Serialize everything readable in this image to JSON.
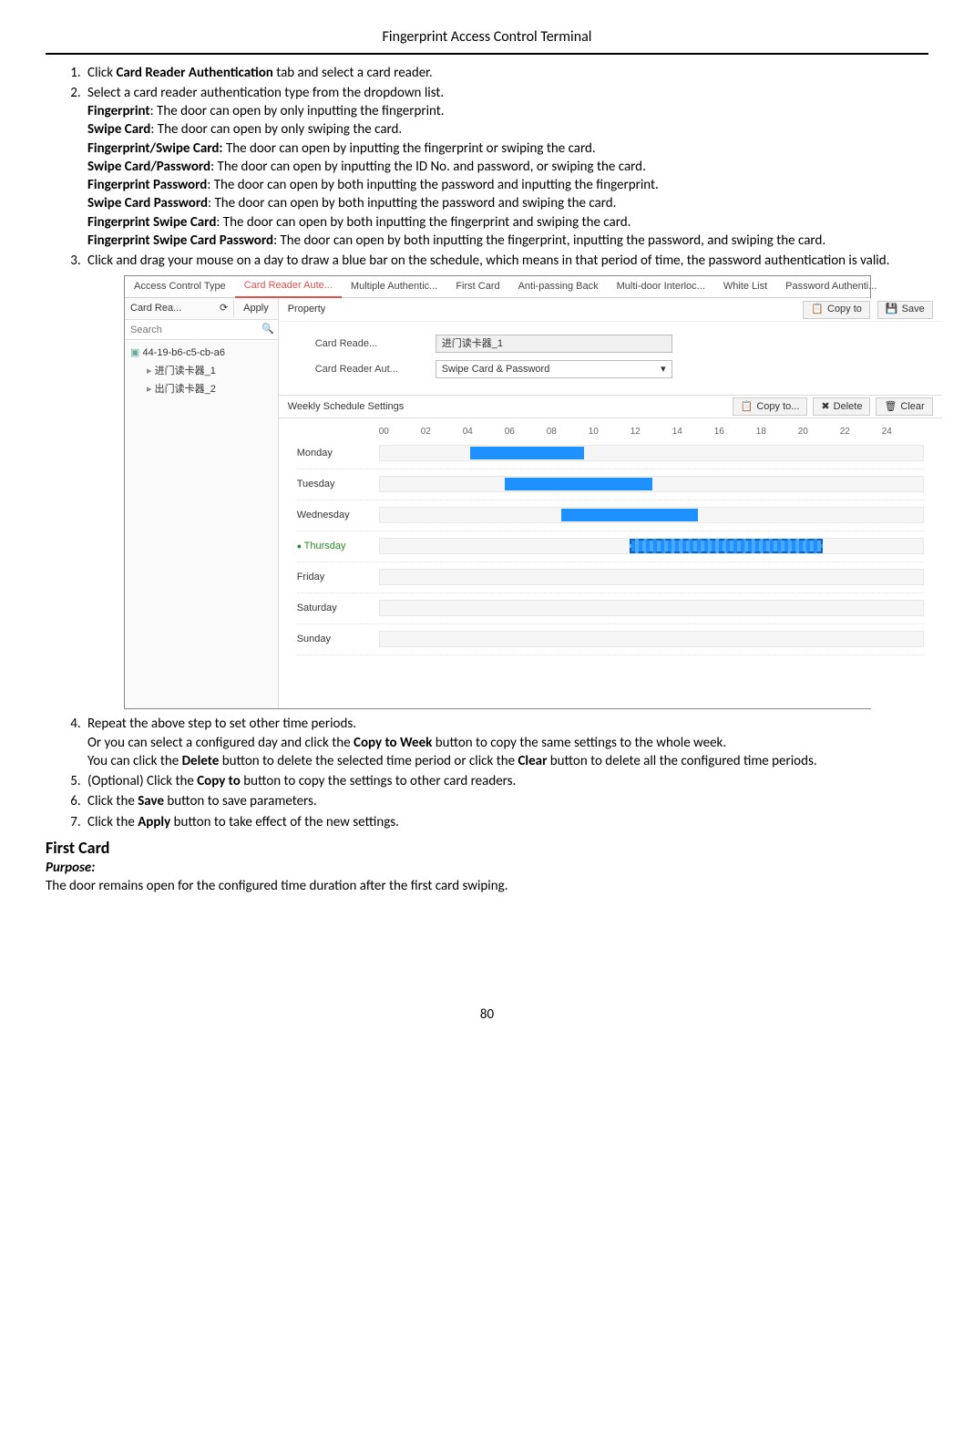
{
  "header": "Fingerprint Access Control Terminal",
  "list": {
    "i1": {
      "pre": "Click ",
      "b": "Card Reader Authentication",
      "post": " tab and select a card reader."
    },
    "i2": {
      "line": "Select a card reader authentication type from the dropdown list.",
      "types": [
        {
          "b": "Fingerprint",
          "t": ": The door can open by only inputting the fingerprint."
        },
        {
          "b": "Swipe Card",
          "t": ": The door can open by only swiping the card."
        },
        {
          "b": "Fingerprint/Swipe Card:",
          "t": " The door can open by inputting the fingerprint or swiping the card."
        },
        {
          "b": "Swipe Card/Password",
          "t": ": The door can open by inputting the ID No. and password, or swiping the card."
        },
        {
          "b": "Fingerprint Password",
          "t": ": The door can open by both inputting the password and inputting the fingerprint."
        },
        {
          "b": "Swipe Card Password",
          "t": ": The door can open by both inputting the password and swiping the card."
        },
        {
          "b": "Fingerprint Swipe Card",
          "t": ": The door can open by both inputting the fingerprint and swiping the card."
        },
        {
          "b": "Fingerprint Swipe Card Password",
          "t": ": The door can open by both inputting the fingerprint, inputting the password, and swiping the card."
        }
      ]
    },
    "i3": "Click and drag your mouse on a day to draw a blue bar on the schedule, which means in that period of time, the password authentication is valid.",
    "i4": {
      "a": "Repeat the above step to set other time periods.",
      "b1": "Or you can select a configured day and click the ",
      "b1b": "Copy to Week",
      "b1p": " button to copy the same settings to the whole week.",
      "c1": "You can click the ",
      "c1b": "Delete",
      "c1m": " button to delete the selected time period or click the ",
      "c1b2": "Clear",
      "c1p": " button to delete all the configured time periods."
    },
    "i5": {
      "pre": "(Optional) Click the ",
      "b": "Copy to",
      "post": " button to copy the settings to other card readers."
    },
    "i6": {
      "pre": "Click the ",
      "b": "Save",
      "post": " button to save parameters."
    },
    "i7": {
      "pre": "Click the ",
      "b": "Apply",
      "post": " button to take effect of the new settings."
    }
  },
  "section": {
    "title": "First Card",
    "purpose": "Purpose:",
    "text": "The door remains open for the configured time duration after the first card swiping."
  },
  "pageNum": "80",
  "ui": {
    "tabs": [
      "Access Control Type",
      "Card Reader Aute...",
      "Multiple Authentic...",
      "First Card",
      "Anti-passing Back",
      "Multi-door Interloc...",
      "White List",
      "Password Authenti..."
    ],
    "activeTab": 1,
    "left": {
      "label": "Card Rea...",
      "apply": "Apply",
      "search": "Search",
      "root": "44-19-b6-c5-cb-a6",
      "children": [
        "进门读卡器_1",
        "出门读卡器_2"
      ]
    },
    "prop": {
      "title": "Property",
      "copyto": "Copy to",
      "save": "Save"
    },
    "form": {
      "r1label": "Card Reade...",
      "r1value": "进门读卡器_1",
      "r2label": "Card Reader Aut...",
      "r2value": "Swipe Card & Password"
    },
    "sched": {
      "title": "Weekly Schedule Settings",
      "copyto": "Copy to...",
      "delete": "Delete",
      "clear": "Clear",
      "hours": [
        "00",
        "02",
        "04",
        "06",
        "08",
        "10",
        "12",
        "14",
        "16",
        "18",
        "20",
        "22",
        "24"
      ],
      "days": [
        "Monday",
        "Tuesday",
        "Wednesday",
        "Thursday",
        "Friday",
        "Saturday",
        "Sunday"
      ],
      "activeDay": 3,
      "bars": {
        "Monday": [
          {
            "start": 4.0,
            "end": 9.0
          }
        ],
        "Tuesday": [
          {
            "start": 5.5,
            "end": 12.0
          }
        ],
        "Wednesday": [
          {
            "start": 8.0,
            "end": 14.0
          }
        ],
        "Thursday": [
          {
            "start": 11.0,
            "end": 19.5,
            "dashed": true
          }
        ],
        "Friday": [],
        "Saturday": [],
        "Sunday": []
      },
      "trackWidthPx": 598,
      "trackHours": 24,
      "barColor": "#1e90ff",
      "barDashedBorder": "#0b64c4"
    }
  }
}
